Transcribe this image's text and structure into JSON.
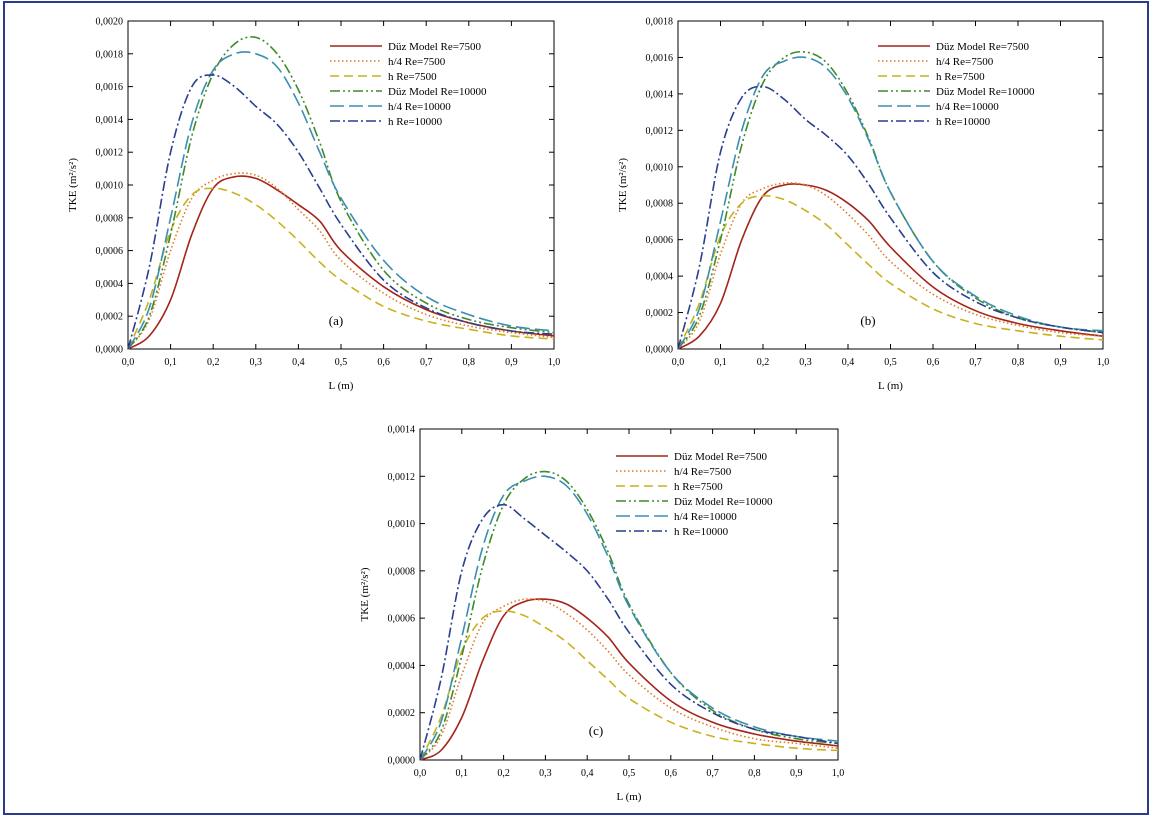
{
  "border_color": "#2b3a8f",
  "series_styles": [
    {
      "color": "#a3241a",
      "dash": ""
    },
    {
      "color": "#e07a20",
      "dash": "1.5,2.5"
    },
    {
      "color": "#c8b21c",
      "dash": "9,5"
    },
    {
      "color": "#3f8a2a",
      "dash": "10,3,2,3,2,3"
    },
    {
      "color": "#3a8fb0",
      "dash": "14,5"
    },
    {
      "color": "#2a3f8f",
      "dash": "10,3,2,3"
    }
  ],
  "chart_data": [
    {
      "type": "line",
      "panel_label": "(a)",
      "xlabel": "L (m)",
      "ylabel": "TKE (m²/s²)",
      "xlim": [
        0,
        1.0
      ],
      "ylim": [
        0,
        0.002
      ],
      "xticks": [
        "0,0",
        "0,1",
        "0,2",
        "0,3",
        "0,4",
        "0,5",
        "0,6",
        "0,7",
        "0,8",
        "0,9",
        "1,0"
      ],
      "yticks": [
        "0,0000",
        "0,0002",
        "0,0004",
        "0,0006",
        "0,0008",
        "0,0010",
        "0,0012",
        "0,0014",
        "0,0016",
        "0,0018",
        "0,0020"
      ],
      "legend": "top-right",
      "x": [
        0,
        0.05,
        0.1,
        0.15,
        0.2,
        0.25,
        0.3,
        0.35,
        0.4,
        0.45,
        0.5,
        0.6,
        0.7,
        0.8,
        0.9,
        1.0
      ],
      "series": [
        {
          "name": "Düz Model Re=7500",
          "values": [
            0.0,
            8e-05,
            0.0003,
            0.0007,
            0.00098,
            0.00105,
            0.00104,
            0.00097,
            0.00088,
            0.00078,
            0.0006,
            0.00038,
            0.00024,
            0.00016,
            0.00011,
            8e-05
          ]
        },
        {
          "name": "h/4 Re=7500",
          "values": [
            0.0,
            0.00018,
            0.0006,
            0.00092,
            0.00103,
            0.00107,
            0.00106,
            0.00098,
            0.00085,
            0.00072,
            0.00054,
            0.00034,
            0.00021,
            0.00014,
            0.0001,
            7e-05
          ]
        },
        {
          "name": "h Re=7500",
          "values": [
            0.0,
            0.0003,
            0.00072,
            0.00094,
            0.00098,
            0.00095,
            0.00088,
            0.00078,
            0.00066,
            0.00053,
            0.00042,
            0.00026,
            0.00017,
            0.00012,
            8e-05,
            6e-05
          ]
        },
        {
          "name": "Düz Model Re=10000",
          "values": [
            0.0,
            0.0002,
            0.0007,
            0.0013,
            0.00168,
            0.00186,
            0.0019,
            0.0018,
            0.00158,
            0.00126,
            0.0009,
            0.00048,
            0.00028,
            0.00018,
            0.00013,
            0.0001
          ]
        },
        {
          "name": "h/4 Re=10000",
          "values": [
            0.0,
            0.00025,
            0.0008,
            0.00138,
            0.0017,
            0.0018,
            0.0018,
            0.00172,
            0.0015,
            0.0012,
            0.00092,
            0.00054,
            0.00032,
            0.00021,
            0.00014,
            0.00011
          ]
        },
        {
          "name": "h Re=10000",
          "values": [
            0.0,
            0.0005,
            0.0012,
            0.0016,
            0.00167,
            0.0016,
            0.00148,
            0.00137,
            0.0012,
            0.00098,
            0.00076,
            0.00042,
            0.00025,
            0.00016,
            0.00011,
            9e-05
          ]
        }
      ]
    },
    {
      "type": "line",
      "panel_label": "(b)",
      "xlabel": "L (m)",
      "ylabel": "TKE (m²/s²)",
      "xlim": [
        0,
        1.0
      ],
      "ylim": [
        0,
        0.0018
      ],
      "xticks": [
        "0,0",
        "0,1",
        "0,2",
        "0,3",
        "0,4",
        "0,5",
        "0,6",
        "0,7",
        "0,8",
        "0,9",
        "1,0"
      ],
      "yticks": [
        "0,0000",
        "0,0002",
        "0,0004",
        "0,0006",
        "0,0008",
        "0,0010",
        "0,0012",
        "0,0014",
        "0,0016",
        "0,0018"
      ],
      "legend": "top-right",
      "x": [
        0,
        0.05,
        0.1,
        0.15,
        0.2,
        0.25,
        0.3,
        0.35,
        0.4,
        0.45,
        0.5,
        0.6,
        0.7,
        0.8,
        0.9,
        1.0
      ],
      "series": [
        {
          "name": "Düz Model Re=7500",
          "values": [
            0.0,
            7e-05,
            0.00025,
            0.0006,
            0.00084,
            0.0009,
            0.0009,
            0.00087,
            0.0008,
            0.0007,
            0.00056,
            0.00034,
            0.00021,
            0.00014,
            0.0001,
            7e-05
          ]
        },
        {
          "name": "h/4 Re=7500",
          "values": [
            0.0,
            0.00015,
            0.00052,
            0.0008,
            0.00088,
            0.00091,
            0.0009,
            0.00084,
            0.00074,
            0.00062,
            0.00048,
            0.0003,
            0.00019,
            0.00013,
            9e-05,
            7e-05
          ]
        },
        {
          "name": "h Re=7500",
          "values": [
            0.0,
            0.00025,
            0.00062,
            0.0008,
            0.00084,
            0.00082,
            0.00076,
            0.00068,
            0.00057,
            0.00046,
            0.00036,
            0.00022,
            0.00014,
            0.0001,
            7e-05,
            5e-05
          ]
        },
        {
          "name": "Düz Model Re=10000",
          "values": [
            0.0,
            0.00018,
            0.0006,
            0.00112,
            0.00146,
            0.0016,
            0.00163,
            0.00157,
            0.0014,
            0.00115,
            0.00086,
            0.00048,
            0.00028,
            0.00017,
            0.00012,
            9e-05
          ]
        },
        {
          "name": "h/4 Re=10000",
          "values": [
            0.0,
            0.00022,
            0.0007,
            0.0012,
            0.0015,
            0.00158,
            0.0016,
            0.00154,
            0.00138,
            0.00114,
            0.00086,
            0.00048,
            0.00029,
            0.00018,
            0.00012,
            0.0001
          ]
        },
        {
          "name": "h Re=10000",
          "values": [
            0.0,
            0.00045,
            0.00108,
            0.00138,
            0.00144,
            0.00137,
            0.00126,
            0.00117,
            0.00106,
            0.0009,
            0.00072,
            0.00042,
            0.00026,
            0.00017,
            0.00012,
            9e-05
          ]
        }
      ]
    },
    {
      "type": "line",
      "panel_label": "(c)",
      "xlabel": "L (m)",
      "ylabel": "TKE (m²/s²)",
      "xlim": [
        0,
        1.0
      ],
      "ylim": [
        0,
        0.0014
      ],
      "xticks": [
        "0,0",
        "0,1",
        "0,2",
        "0,3",
        "0,4",
        "0,5",
        "0,6",
        "0,7",
        "0,8",
        "0,9",
        "1,0"
      ],
      "yticks": [
        "0,0000",
        "0,0002",
        "0,0004",
        "0,0006",
        "0,0008",
        "0,0010",
        "0,0012",
        "0,0014"
      ],
      "legend": "top-right",
      "x": [
        0,
        0.05,
        0.1,
        0.15,
        0.2,
        0.25,
        0.3,
        0.35,
        0.4,
        0.45,
        0.5,
        0.6,
        0.7,
        0.8,
        0.9,
        1.0
      ],
      "series": [
        {
          "name": "Düz Model Re=7500",
          "values": [
            0.0,
            4e-05,
            0.00018,
            0.00042,
            0.00061,
            0.00067,
            0.00068,
            0.00066,
            0.0006,
            0.00052,
            0.00041,
            0.00025,
            0.00016,
            0.00011,
            8e-05,
            6e-05
          ]
        },
        {
          "name": "h/4 Re=7500",
          "values": [
            0.0,
            0.0001,
            0.00036,
            0.00058,
            0.00065,
            0.00068,
            0.00067,
            0.00062,
            0.00055,
            0.00046,
            0.00036,
            0.00022,
            0.00014,
            9e-05,
            7e-05,
            5e-05
          ]
        },
        {
          "name": "h Re=7500",
          "values": [
            0.0,
            0.00018,
            0.00046,
            0.0006,
            0.00063,
            0.00061,
            0.00056,
            0.0005,
            0.00042,
            0.00034,
            0.00026,
            0.00016,
            0.0001,
            7e-05,
            5e-05,
            4e-05
          ]
        },
        {
          "name": "Düz Model Re=10000",
          "values": [
            0.0,
            0.00012,
            0.00044,
            0.00082,
            0.00108,
            0.00119,
            0.00122,
            0.00118,
            0.00106,
            0.00088,
            0.00066,
            0.00037,
            0.00021,
            0.00013,
            9e-05,
            7e-05
          ]
        },
        {
          "name": "h/4 Re=10000",
          "values": [
            0.0,
            0.00016,
            0.00052,
            0.0009,
            0.00112,
            0.00118,
            0.0012,
            0.00116,
            0.00104,
            0.00086,
            0.00065,
            0.00037,
            0.00022,
            0.00014,
            0.0001,
            8e-05
          ]
        },
        {
          "name": "h Re=10000",
          "values": [
            0.0,
            0.00034,
            0.0008,
            0.00102,
            0.00108,
            0.00102,
            0.00095,
            0.00088,
            0.0008,
            0.00068,
            0.00054,
            0.00032,
            0.0002,
            0.00013,
            0.0001,
            7e-05
          ]
        }
      ]
    }
  ]
}
